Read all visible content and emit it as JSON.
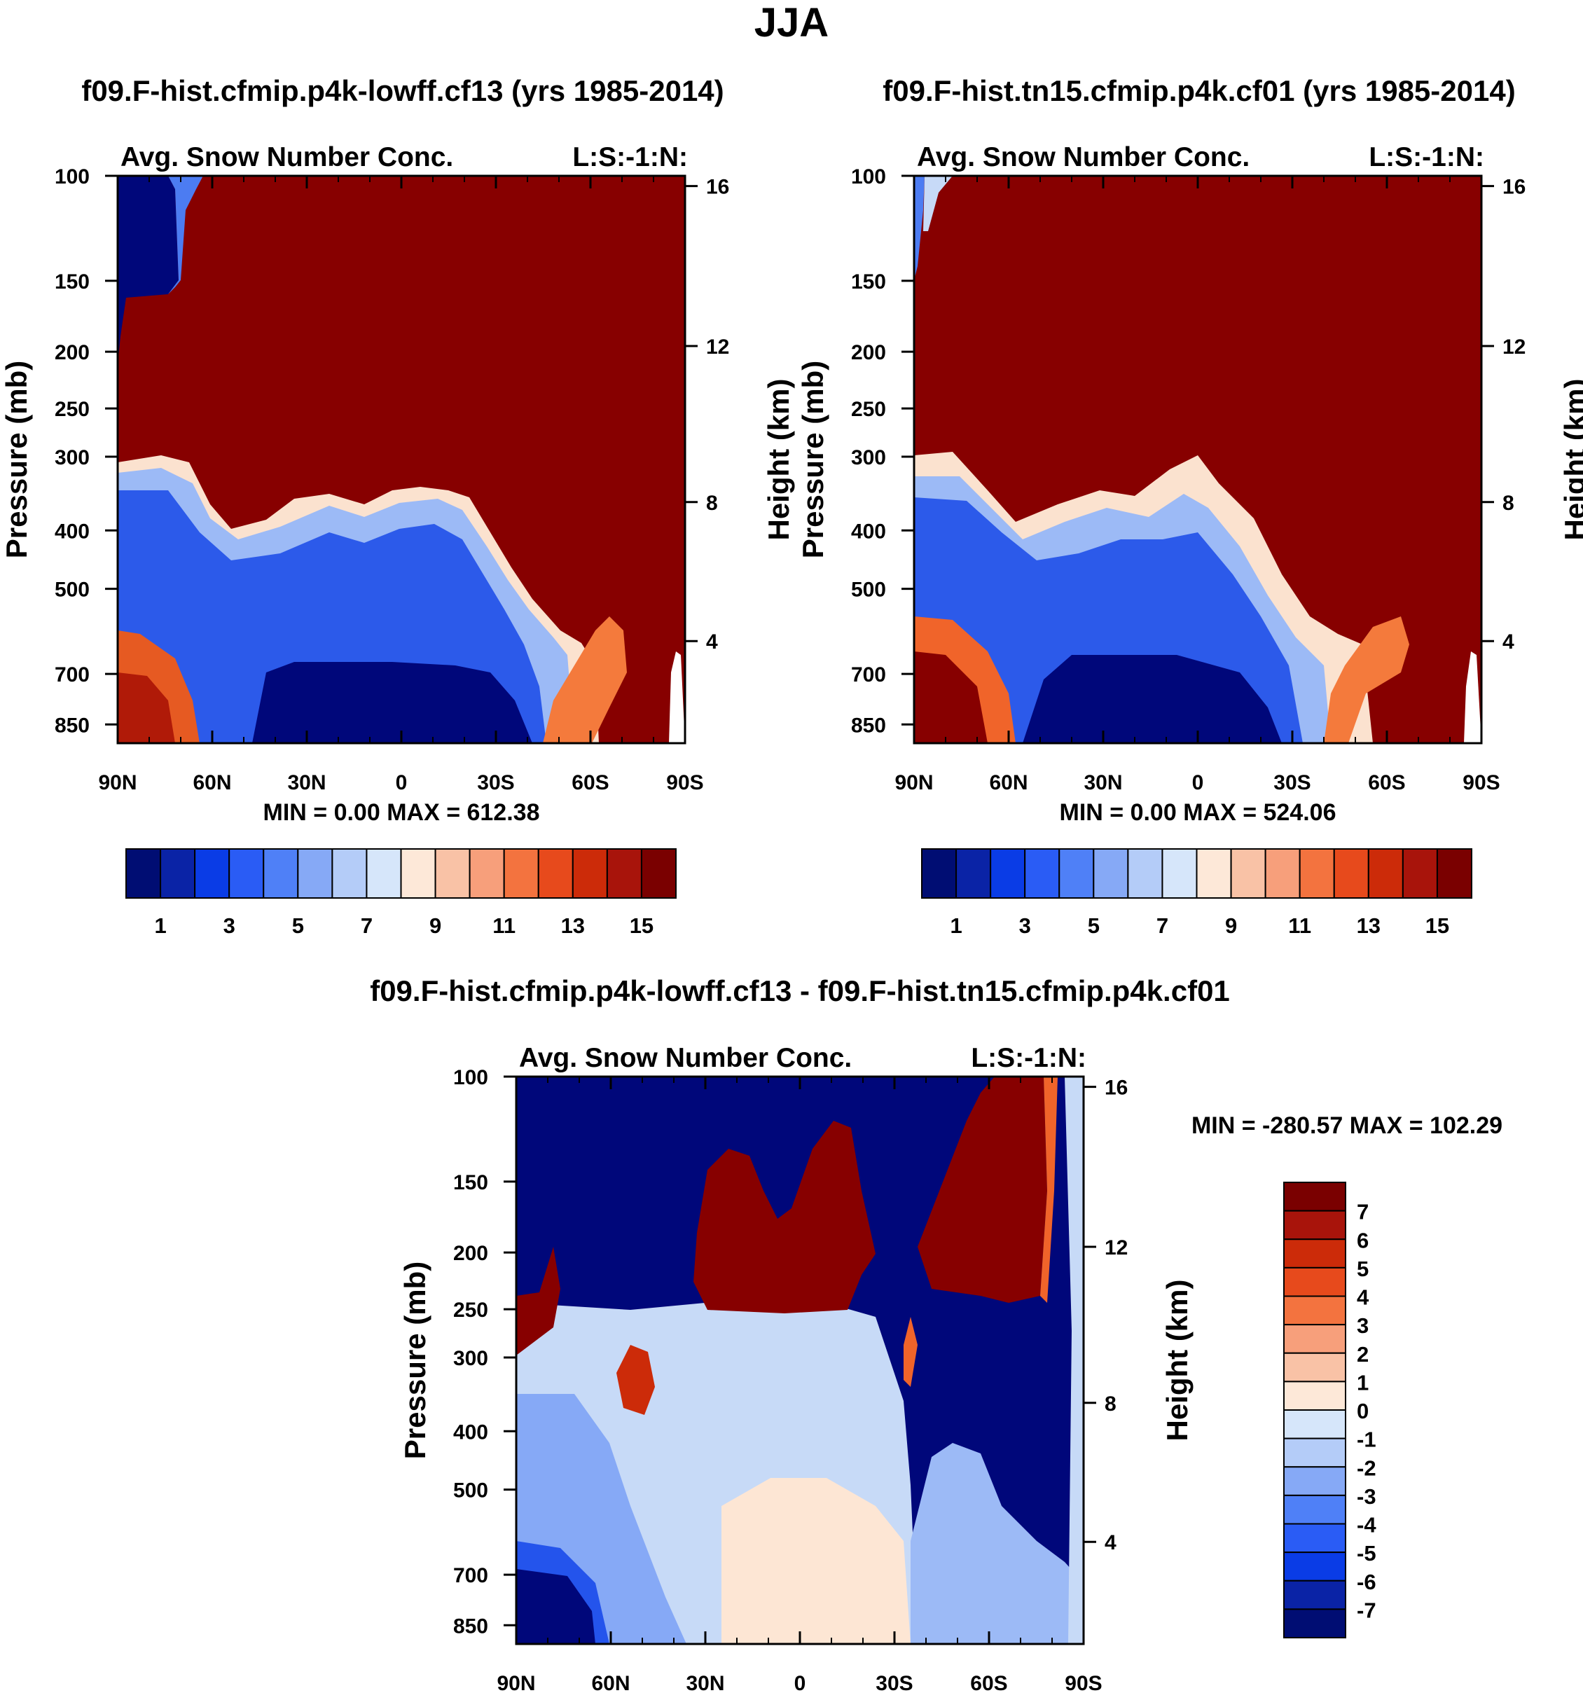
{
  "figure_title": "JJA",
  "chart_data": [
    {
      "type": "heatmap",
      "title": "f09.F-hist.cfmip.p4k-lowff.cf13 (yrs 1985-2014)",
      "subtitle_left": "Avg. Snow Number Conc.",
      "subtitle_right": "L:S:-1:N:",
      "ylabel": "Pressure (mb)",
      "ylabel_right": "Height (km)",
      "x_ticks": [
        "90N",
        "60N",
        "30N",
        "0",
        "30S",
        "60S",
        "90S"
      ],
      "y_ticks": [
        "100",
        "150",
        "200",
        "250",
        "300",
        "400",
        "500",
        "700",
        "850"
      ],
      "y_ticks_right": [
        "16",
        "12",
        "8",
        "4"
      ],
      "min_max_text": "MIN =    0.00   MAX = 612.38",
      "colorbar_labels": [
        "1",
        "3",
        "5",
        "7",
        "9",
        "11",
        "13",
        "15"
      ],
      "grid": false
    },
    {
      "type": "heatmap",
      "title": "f09.F-hist.tn15.cfmip.p4k.cf01 (yrs 1985-2014)",
      "subtitle_left": "Avg. Snow Number Conc.",
      "subtitle_right": "L:S:-1:N:",
      "ylabel": "Pressure (mb)",
      "ylabel_right": "Height (km)",
      "x_ticks": [
        "90N",
        "60N",
        "30N",
        "0",
        "30S",
        "60S",
        "90S"
      ],
      "y_ticks": [
        "100",
        "150",
        "200",
        "250",
        "300",
        "400",
        "500",
        "700",
        "850"
      ],
      "y_ticks_right": [
        "16",
        "12",
        "8",
        "4"
      ],
      "min_max_text": "MIN =    0.00   MAX = 524.06",
      "colorbar_labels": [
        "1",
        "3",
        "5",
        "7",
        "9",
        "11",
        "13",
        "15"
      ],
      "grid": false
    },
    {
      "type": "heatmap",
      "title": "f09.F-hist.cfmip.p4k-lowff.cf13 - f09.F-hist.tn15.cfmip.p4k.cf01",
      "subtitle_left": "Avg. Snow Number Conc.",
      "subtitle_right": "L:S:-1:N:",
      "ylabel": "Pressure (mb)",
      "ylabel_right": "Height (km)",
      "x_ticks": [
        "90N",
        "60N",
        "30N",
        "0",
        "30S",
        "60S",
        "90S"
      ],
      "y_ticks": [
        "100",
        "150",
        "200",
        "250",
        "300",
        "400",
        "500",
        "700",
        "850"
      ],
      "y_ticks_right": [
        "16",
        "12",
        "8",
        "4"
      ],
      "min_max_text": "MIN = -280.57   MAX = 102.29",
      "colorbar_labels": [
        "7",
        "6",
        "5",
        "4",
        "3",
        "2",
        "1",
        "0",
        "-1",
        "-2",
        "-3",
        "-4",
        "-5",
        "-6",
        "-7"
      ],
      "grid": false
    }
  ],
  "colorbar_colors": [
    "#000d73",
    "#0a23a6",
    "#0a3ce6",
    "#2a5cf5",
    "#4f80f7",
    "#86a9f6",
    "#b4ccf8",
    "#d6e6fa",
    "#fde8d8",
    "#f9c2a6",
    "#f79f7b",
    "#f3733f",
    "#e74a1c",
    "#cc2b09",
    "#a8140b",
    "#7a0000"
  ],
  "colors": {
    "deep_blue": "#00077a",
    "mid_blue": "#2454ec",
    "light_blue": "#c7daf7",
    "pale_cream": "#fde6d4",
    "orange": "#f0642a",
    "dark_red": "#870000"
  }
}
